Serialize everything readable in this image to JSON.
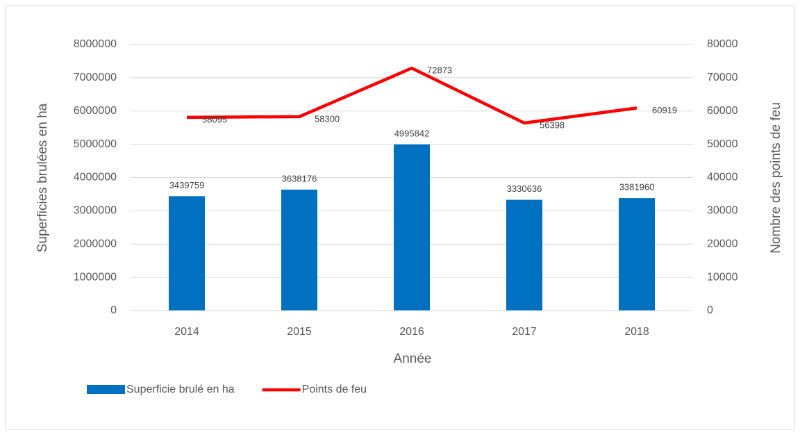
{
  "chart_data": {
    "type": "bar",
    "categories": [
      "2014",
      "2015",
      "2016",
      "2017",
      "2018"
    ],
    "x_label": "Année",
    "y_label": "Superficies brulées en ha",
    "y2_label": "Nombre des points de feu",
    "series": [
      {
        "name": "Superficie brulé en ha",
        "type": "bar",
        "color": "#0070c0",
        "values": [
          3439759,
          3638176,
          4995842,
          3330636,
          3381960
        ]
      },
      {
        "name": "Points de feu",
        "type": "line",
        "axis": "y2",
        "color": "#ff0000",
        "values": [
          58095,
          58300,
          72873,
          56398,
          60919
        ]
      }
    ],
    "ylim": [
      0,
      8000000
    ],
    "yticks": [
      0,
      1000000,
      2000000,
      3000000,
      4000000,
      5000000,
      6000000,
      7000000,
      8000000
    ],
    "y2lim": [
      0,
      80000
    ],
    "y2ticks": [
      0,
      10000,
      20000,
      30000,
      40000,
      50000,
      60000,
      70000,
      80000
    ],
    "grid": true,
    "legend": "bottom"
  }
}
